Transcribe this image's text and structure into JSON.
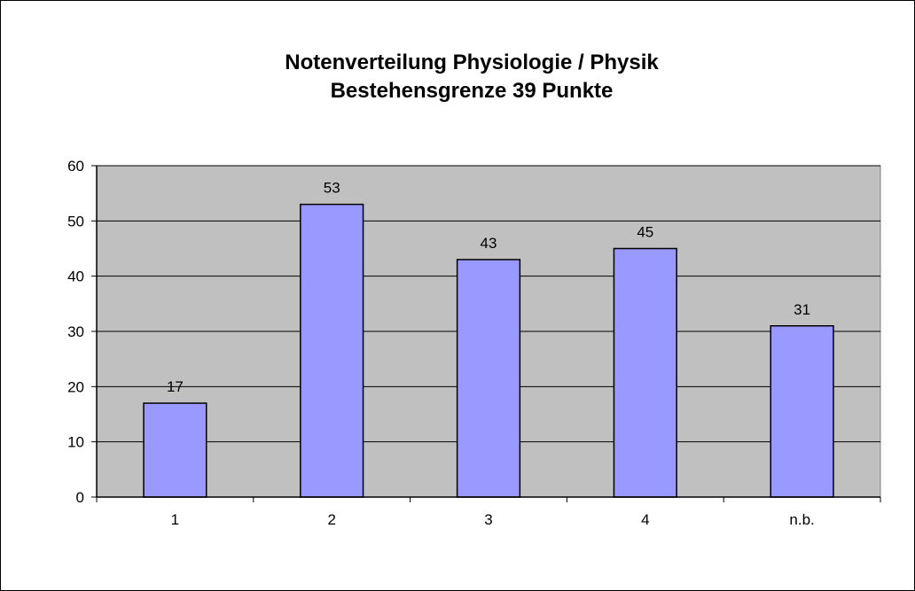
{
  "chart_data": {
    "type": "bar",
    "title": "Notenverteilung Physiologie / Physik",
    "subtitle": "Bestehensgrenze 39 Punkte",
    "xlabel": "",
    "ylabel": "",
    "categories": [
      "1",
      "2",
      "3",
      "4",
      "n.b."
    ],
    "values": [
      17,
      53,
      43,
      45,
      31
    ],
    "data_labels": [
      "17",
      "53",
      "43",
      "45",
      "31"
    ],
    "ylim": [
      0,
      60
    ],
    "y_ticks": [
      0,
      10,
      20,
      30,
      40,
      50,
      60
    ],
    "y_tick_labels": [
      "0",
      "10",
      "20",
      "30",
      "40",
      "50",
      "60"
    ],
    "grid": true,
    "legend": "none",
    "colors": {
      "bar_fill": "#9999ff",
      "bar_stroke": "#000000",
      "plot_background": "#c0c0c0",
      "gridline": "#000000"
    }
  }
}
